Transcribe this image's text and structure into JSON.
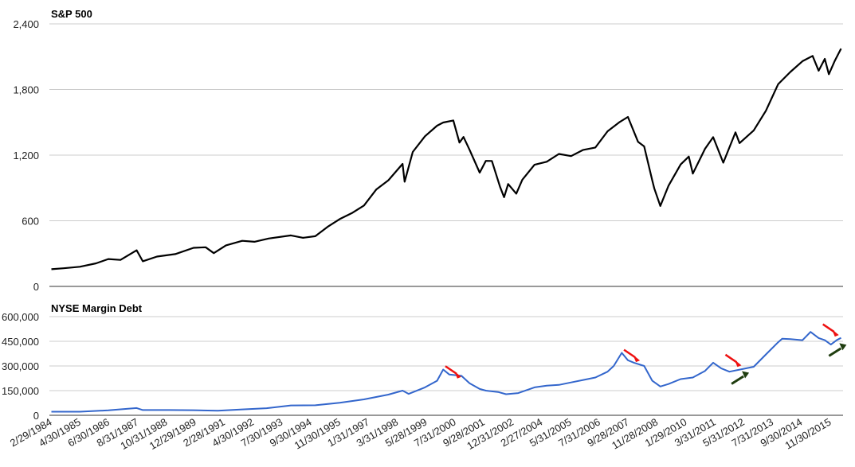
{
  "chart_data": [
    {
      "type": "line",
      "title": "S&P 500",
      "ylim": [
        0,
        2400
      ],
      "yticks": [
        "0",
        "600",
        "1,200",
        "1,800",
        "2,400"
      ],
      "grid": true,
      "color": "#000000",
      "series": [
        {
          "x_start": "1984-02",
          "x_end": "2016-08",
          "points": [
            [
              "1984-02",
              157
            ],
            [
              "1984-08",
              166
            ],
            [
              "1985-04",
              180
            ],
            [
              "1985-12",
              211
            ],
            [
              "1986-06",
              250
            ],
            [
              "1986-12",
              242
            ],
            [
              "1987-08",
              330
            ],
            [
              "1987-11",
              230
            ],
            [
              "1988-06",
              273
            ],
            [
              "1989-03",
              295
            ],
            [
              "1989-12",
              353
            ],
            [
              "1990-06",
              358
            ],
            [
              "1990-10",
              304
            ],
            [
              "1991-04",
              375
            ],
            [
              "1991-12",
              417
            ],
            [
              "1992-06",
              408
            ],
            [
              "1993-01",
              438
            ],
            [
              "1993-12",
              466
            ],
            [
              "1994-06",
              444
            ],
            [
              "1994-12",
              459
            ],
            [
              "1995-06",
              544
            ],
            [
              "1995-12",
              615
            ],
            [
              "1996-06",
              670
            ],
            [
              "1996-12",
              740
            ],
            [
              "1997-06",
              885
            ],
            [
              "1997-12",
              970
            ],
            [
              "1998-07",
              1120
            ],
            [
              "1998-08",
              957
            ],
            [
              "1998-12",
              1229
            ],
            [
              "1999-06",
              1372
            ],
            [
              "1999-12",
              1469
            ],
            [
              "2000-03",
              1498
            ],
            [
              "2000-08",
              1517
            ],
            [
              "2000-11",
              1315
            ],
            [
              "2001-01",
              1366
            ],
            [
              "2001-04",
              1249
            ],
            [
              "2001-09",
              1040
            ],
            [
              "2001-12",
              1148
            ],
            [
              "2002-03",
              1147
            ],
            [
              "2002-07",
              911
            ],
            [
              "2002-09",
              815
            ],
            [
              "2002-11",
              936
            ],
            [
              "2003-03",
              848
            ],
            [
              "2003-06",
              975
            ],
            [
              "2003-12",
              1112
            ],
            [
              "2004-06",
              1140
            ],
            [
              "2004-12",
              1211
            ],
            [
              "2005-06",
              1191
            ],
            [
              "2005-12",
              1248
            ],
            [
              "2006-06",
              1270
            ],
            [
              "2006-12",
              1418
            ],
            [
              "2007-06",
              1503
            ],
            [
              "2007-10",
              1549
            ],
            [
              "2008-03",
              1322
            ],
            [
              "2008-06",
              1280
            ],
            [
              "2008-10",
              968
            ],
            [
              "2008-11",
              896
            ],
            [
              "2009-02",
              735
            ],
            [
              "2009-06",
              919
            ],
            [
              "2009-12",
              1115
            ],
            [
              "2010-04",
              1187
            ],
            [
              "2010-06",
              1031
            ],
            [
              "2010-12",
              1258
            ],
            [
              "2011-04",
              1364
            ],
            [
              "2011-09",
              1131
            ],
            [
              "2012-03",
              1408
            ],
            [
              "2012-05",
              1310
            ],
            [
              "2012-12",
              1426
            ],
            [
              "2013-06",
              1606
            ],
            [
              "2013-12",
              1848
            ],
            [
              "2014-06",
              1960
            ],
            [
              "2014-12",
              2059
            ],
            [
              "2015-05",
              2107
            ],
            [
              "2015-08",
              1972
            ],
            [
              "2015-11",
              2080
            ],
            [
              "2016-01",
              1940
            ],
            [
              "2016-04",
              2065
            ],
            [
              "2016-07",
              2174
            ]
          ]
        }
      ]
    },
    {
      "type": "line",
      "title": "NYSE Margin Debt",
      "ylim": [
        0,
        600000
      ],
      "yticks": [
        "0",
        "150,000",
        "300,000",
        "450,000",
        "600,000"
      ],
      "grid": true,
      "color": "#3366cc",
      "series": [
        {
          "points": [
            [
              "1984-02",
              22000
            ],
            [
              "1985-04",
              22000
            ],
            [
              "1986-06",
              30000
            ],
            [
              "1987-08",
              44000
            ],
            [
              "1987-11",
              32000
            ],
            [
              "1988-12",
              32000
            ],
            [
              "1989-12",
              31000
            ],
            [
              "1990-12",
              28000
            ],
            [
              "1991-12",
              36000
            ],
            [
              "1992-12",
              43000
            ],
            [
              "1993-12",
              60000
            ],
            [
              "1994-12",
              61000
            ],
            [
              "1995-12",
              76000
            ],
            [
              "1996-12",
              97000
            ],
            [
              "1997-12",
              126000
            ],
            [
              "1998-07",
              150000
            ],
            [
              "1998-10",
              130000
            ],
            [
              "1998-12",
              140000
            ],
            [
              "1999-06",
              170000
            ],
            [
              "1999-12",
              210000
            ],
            [
              "2000-03",
              278000
            ],
            [
              "2000-06",
              248000
            ],
            [
              "2000-12",
              240000
            ],
            [
              "2001-04",
              195000
            ],
            [
              "2001-09",
              160000
            ],
            [
              "2001-12",
              150000
            ],
            [
              "2002-06",
              142000
            ],
            [
              "2002-10",
              128000
            ],
            [
              "2003-04",
              135000
            ],
            [
              "2003-12",
              170000
            ],
            [
              "2004-06",
              180000
            ],
            [
              "2004-12",
              185000
            ],
            [
              "2005-06",
              200000
            ],
            [
              "2005-12",
              215000
            ],
            [
              "2006-06",
              230000
            ],
            [
              "2006-12",
              265000
            ],
            [
              "2007-03",
              300000
            ],
            [
              "2007-07",
              380000
            ],
            [
              "2007-10",
              335000
            ],
            [
              "2008-01",
              320000
            ],
            [
              "2008-06",
              300000
            ],
            [
              "2008-10",
              210000
            ],
            [
              "2009-02",
              175000
            ],
            [
              "2009-06",
              190000
            ],
            [
              "2009-12",
              220000
            ],
            [
              "2010-06",
              230000
            ],
            [
              "2010-12",
              270000
            ],
            [
              "2011-04",
              320000
            ],
            [
              "2011-08",
              285000
            ],
            [
              "2011-12",
              265000
            ],
            [
              "2012-06",
              280000
            ],
            [
              "2012-12",
              295000
            ],
            [
              "2013-06",
              370000
            ],
            [
              "2013-12",
              444000
            ],
            [
              "2014-02",
              466000
            ],
            [
              "2014-06",
              463000
            ],
            [
              "2014-12",
              457000
            ],
            [
              "2015-04",
              507000
            ],
            [
              "2015-08",
              470000
            ],
            [
              "2015-11",
              457000
            ],
            [
              "2016-02",
              430000
            ],
            [
              "2016-05",
              458000
            ],
            [
              "2016-07",
              471000
            ]
          ]
        }
      ],
      "annotations": [
        {
          "kind": "red-arrow",
          "date": "2000-08",
          "value": 260000
        },
        {
          "kind": "red-arrow",
          "date": "2007-12",
          "value": 360000
        },
        {
          "kind": "red-arrow",
          "date": "2012-02",
          "value": 330000
        },
        {
          "kind": "red-arrow",
          "date": "2016-02",
          "value": 515000
        },
        {
          "kind": "green-arrow",
          "date": "2012-05",
          "value": 230000
        },
        {
          "kind": "green-arrow",
          "date": "2016-05",
          "value": 400000
        }
      ]
    }
  ],
  "x_axis": {
    "tick_labels": [
      "2/29/1984",
      "4/30/1985",
      "6/30/1986",
      "8/31/1987",
      "10/31/1988",
      "12/29/1989",
      "2/28/1991",
      "4/30/1992",
      "7/30/1993",
      "9/30/1994",
      "11/30/1995",
      "1/31/1997",
      "3/31/1998",
      "5/28/1999",
      "7/31/2000",
      "9/28/2001",
      "12/31/2002",
      "2/27/2004",
      "5/31/2005",
      "7/31/2006",
      "9/28/2007",
      "11/28/2008",
      "1/29/2010",
      "3/31/2011",
      "5/31/2012",
      "7/31/2013",
      "9/30/2014",
      "11/30/2015"
    ]
  }
}
